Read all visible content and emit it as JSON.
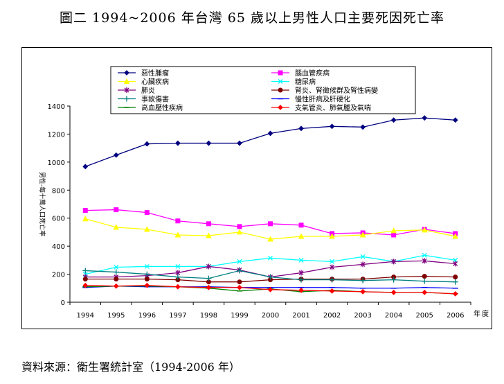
{
  "title": "圖二 1994~2006 年台灣 65 歲以上男性人口主要死因死亡率",
  "source": "資料來源：衛生署統計室（1994-2006 年）",
  "chart_data": {
    "type": "line",
    "ylabel": "男性-每十萬人口死亡率",
    "xlabel": "年度",
    "ylim": [
      0,
      1400
    ],
    "yticks": [
      0,
      200,
      400,
      600,
      800,
      1000,
      1200,
      1400
    ],
    "categories": [
      "1994",
      "1995",
      "1996",
      "1997",
      "1998",
      "1999",
      "2000",
      "2001",
      "2002",
      "2003",
      "2004",
      "2005",
      "2006"
    ],
    "legend_position": "top",
    "series": [
      {
        "name": "惡性腫瘤",
        "color": "#000080",
        "marker": "diamond",
        "values": [
          968,
          1050,
          1130,
          1135,
          1135,
          1135,
          1205,
          1240,
          1255,
          1250,
          1300,
          1315,
          1300
        ]
      },
      {
        "name": "腦血管疾病",
        "color": "#ff00ff",
        "marker": "square",
        "values": [
          655,
          660,
          640,
          580,
          560,
          540,
          560,
          550,
          490,
          495,
          480,
          520,
          490
        ]
      },
      {
        "name": "心臟疾病",
        "color": "#ffff00",
        "marker": "triangle",
        "values": [
          595,
          535,
          520,
          480,
          475,
          500,
          450,
          470,
          470,
          480,
          510,
          515,
          470
        ]
      },
      {
        "name": "糖尿病",
        "color": "#00ffff",
        "marker": "x",
        "values": [
          200,
          250,
          255,
          255,
          255,
          290,
          315,
          300,
          290,
          325,
          290,
          335,
          300
        ]
      },
      {
        "name": "肺炎",
        "color": "#800080",
        "marker": "star",
        "values": [
          180,
          180,
          190,
          210,
          255,
          230,
          180,
          210,
          250,
          270,
          290,
          295,
          275
        ]
      },
      {
        "name": "腎炎、腎徵候群及腎性病變",
        "color": "#800000",
        "marker": "circle",
        "values": [
          165,
          165,
          165,
          160,
          145,
          145,
          160,
          165,
          165,
          165,
          180,
          185,
          180
        ]
      },
      {
        "name": "事故傷害",
        "color": "#008080",
        "marker": "plus",
        "values": [
          225,
          215,
          200,
          180,
          170,
          225,
          180,
          160,
          160,
          155,
          160,
          150,
          145
        ]
      },
      {
        "name": "慢性肝病及肝硬化",
        "color": "#0000ff",
        "marker": "dash",
        "values": [
          105,
          115,
          110,
          110,
          110,
          105,
          105,
          105,
          105,
          100,
          100,
          105,
          100
        ]
      },
      {
        "name": "高血壓性疾病",
        "color": "#008000",
        "marker": "dash",
        "values": [
          110,
          115,
          115,
          110,
          100,
          80,
          95,
          75,
          85,
          75,
          70,
          70,
          60
        ]
      },
      {
        "name": "支氣管炎、肺氣腫及氣喘",
        "color": "#ff0000",
        "marker": "diamond",
        "values": [
          120,
          115,
          120,
          110,
          105,
          105,
          90,
          85,
          80,
          75,
          70,
          70,
          60
        ]
      }
    ]
  }
}
